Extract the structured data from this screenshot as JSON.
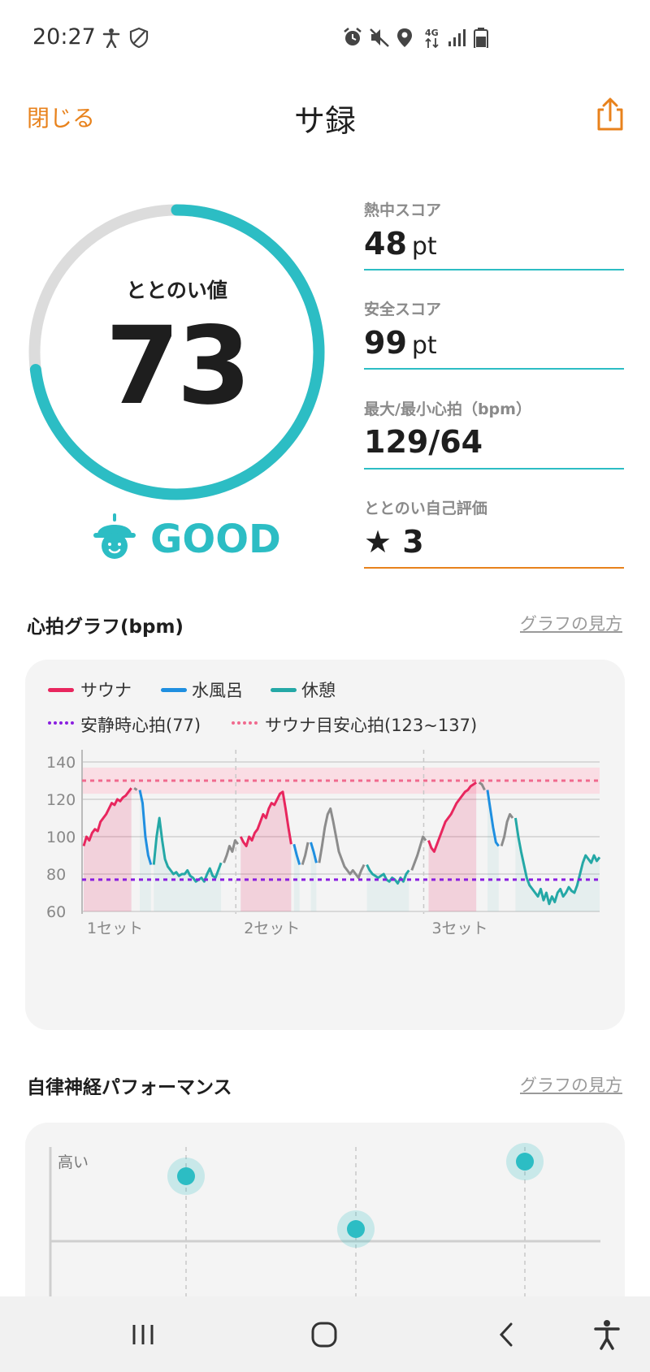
{
  "status_bar": {
    "time": "20:27",
    "icons": [
      "accessibility-icon",
      "shield-icon",
      "alarm-icon",
      "mute-icon",
      "location-icon",
      "4g-icon",
      "signal-icon",
      "battery-icon"
    ]
  },
  "header": {
    "close_label": "閉じる",
    "title": "サ録",
    "share_icon": "share-icon"
  },
  "score": {
    "label": "ととのい値",
    "value": "73",
    "progress_percent": 73,
    "mood": "GOOD",
    "accent": "#2cbdc4"
  },
  "stats": [
    {
      "label": "熱中スコア",
      "value": "48",
      "unit": "pt"
    },
    {
      "label": "安全スコア",
      "value": "99",
      "unit": "pt"
    },
    {
      "label": "最大/最小心拍（bpm）",
      "value": "129/64",
      "unit": ""
    },
    {
      "label": "ととのい自己評価",
      "value": "★ 3",
      "unit": ""
    }
  ],
  "heart_section": {
    "title": "心拍グラフ(bpm)",
    "link": "グラフの見方"
  },
  "nerve_section": {
    "title": "自律神経パフォーマンス",
    "link": "グラフの見方",
    "y_label": "高い"
  },
  "legend": {
    "sauna": "サウナ",
    "water": "水風呂",
    "rest": "休憩",
    "resting_hr": "安静時心拍(77)",
    "sauna_target": "サウナ目安心拍(123~137)"
  },
  "colors": {
    "sauna": "#e8265e",
    "water": "#1f8fe0",
    "rest": "#24a8a6",
    "other": "#8c8c8c",
    "resting": "#8a1fe0",
    "target": "#f06a8e"
  },
  "chart_data": {
    "type": "line",
    "ylim": [
      60,
      140
    ],
    "y_ticks": [
      "140",
      "120",
      "100",
      "80",
      "60"
    ],
    "set_labels": [
      "1セット",
      "2セット",
      "3セット"
    ],
    "resting_hr": 77,
    "target_band": [
      123,
      137
    ],
    "target_line": 130,
    "segments": [
      {
        "phase": "sauna",
        "values": [
          95,
          100,
          98,
          102,
          104,
          103,
          108,
          110,
          112,
          115,
          118,
          117,
          120,
          119,
          121,
          122,
          124,
          126
        ]
      },
      {
        "phase": "other",
        "values": [
          126,
          125
        ]
      },
      {
        "phase": "water",
        "values": [
          125,
          118,
          100,
          90,
          85
        ]
      },
      {
        "phase": "rest",
        "values": [
          85,
          100,
          110,
          98,
          88,
          84,
          82,
          80,
          81,
          79,
          80,
          80,
          82,
          79,
          78,
          76,
          77,
          78,
          76,
          80,
          83,
          79,
          78,
          82,
          86
        ]
      },
      {
        "phase": "other",
        "values": [
          86,
          90,
          95,
          92,
          98,
          96
        ]
      },
      {
        "phase": "sauna",
        "values": [
          100,
          97,
          95,
          100,
          98,
          102,
          104,
          108,
          112,
          110,
          115,
          118,
          117,
          120,
          123,
          124,
          115,
          105,
          96
        ]
      },
      {
        "phase": "water",
        "values": [
          96,
          90,
          85
        ]
      },
      {
        "phase": "other",
        "values": [
          85,
          90,
          97
        ]
      },
      {
        "phase": "water",
        "values": [
          97,
          92,
          86
        ]
      },
      {
        "phase": "other",
        "values": [
          86,
          95,
          105,
          112,
          115,
          108,
          100,
          92,
          88,
          84,
          82,
          80,
          82,
          80,
          78,
          82,
          85
        ]
      },
      {
        "phase": "rest",
        "values": [
          85,
          82,
          80,
          79,
          78,
          79,
          80,
          77,
          76,
          78,
          77,
          75,
          78,
          76,
          80,
          82
        ]
      },
      {
        "phase": "other",
        "values": [
          82,
          86,
          90,
          95,
          100,
          98
        ]
      },
      {
        "phase": "sauna",
        "values": [
          98,
          94,
          92,
          96,
          100,
          104,
          108,
          110,
          112,
          115,
          118,
          120,
          122,
          124,
          125,
          127,
          128,
          129
        ]
      },
      {
        "phase": "other",
        "values": [
          129,
          128,
          125
        ]
      },
      {
        "phase": "water",
        "values": [
          125,
          115,
          105,
          97,
          95
        ]
      },
      {
        "phase": "other",
        "values": [
          95,
          100,
          108,
          112,
          110
        ]
      },
      {
        "phase": "rest",
        "values": [
          110,
          100,
          92,
          85,
          78,
          74,
          72,
          70,
          68,
          72,
          66,
          70,
          64,
          68,
          65,
          70,
          72,
          68,
          70,
          73,
          71,
          70,
          74,
          80,
          86,
          90,
          88,
          86,
          90,
          87,
          89
        ]
      }
    ]
  },
  "nerve_chart": {
    "columns": [
      {
        "level": 0.8
      },
      {
        "level": 0.18
      },
      {
        "level": 0.98
      }
    ]
  },
  "nav": {
    "recent": "recent-apps-icon",
    "home": "home-icon",
    "back": "back-icon",
    "accessibility": "accessibility-icon"
  }
}
